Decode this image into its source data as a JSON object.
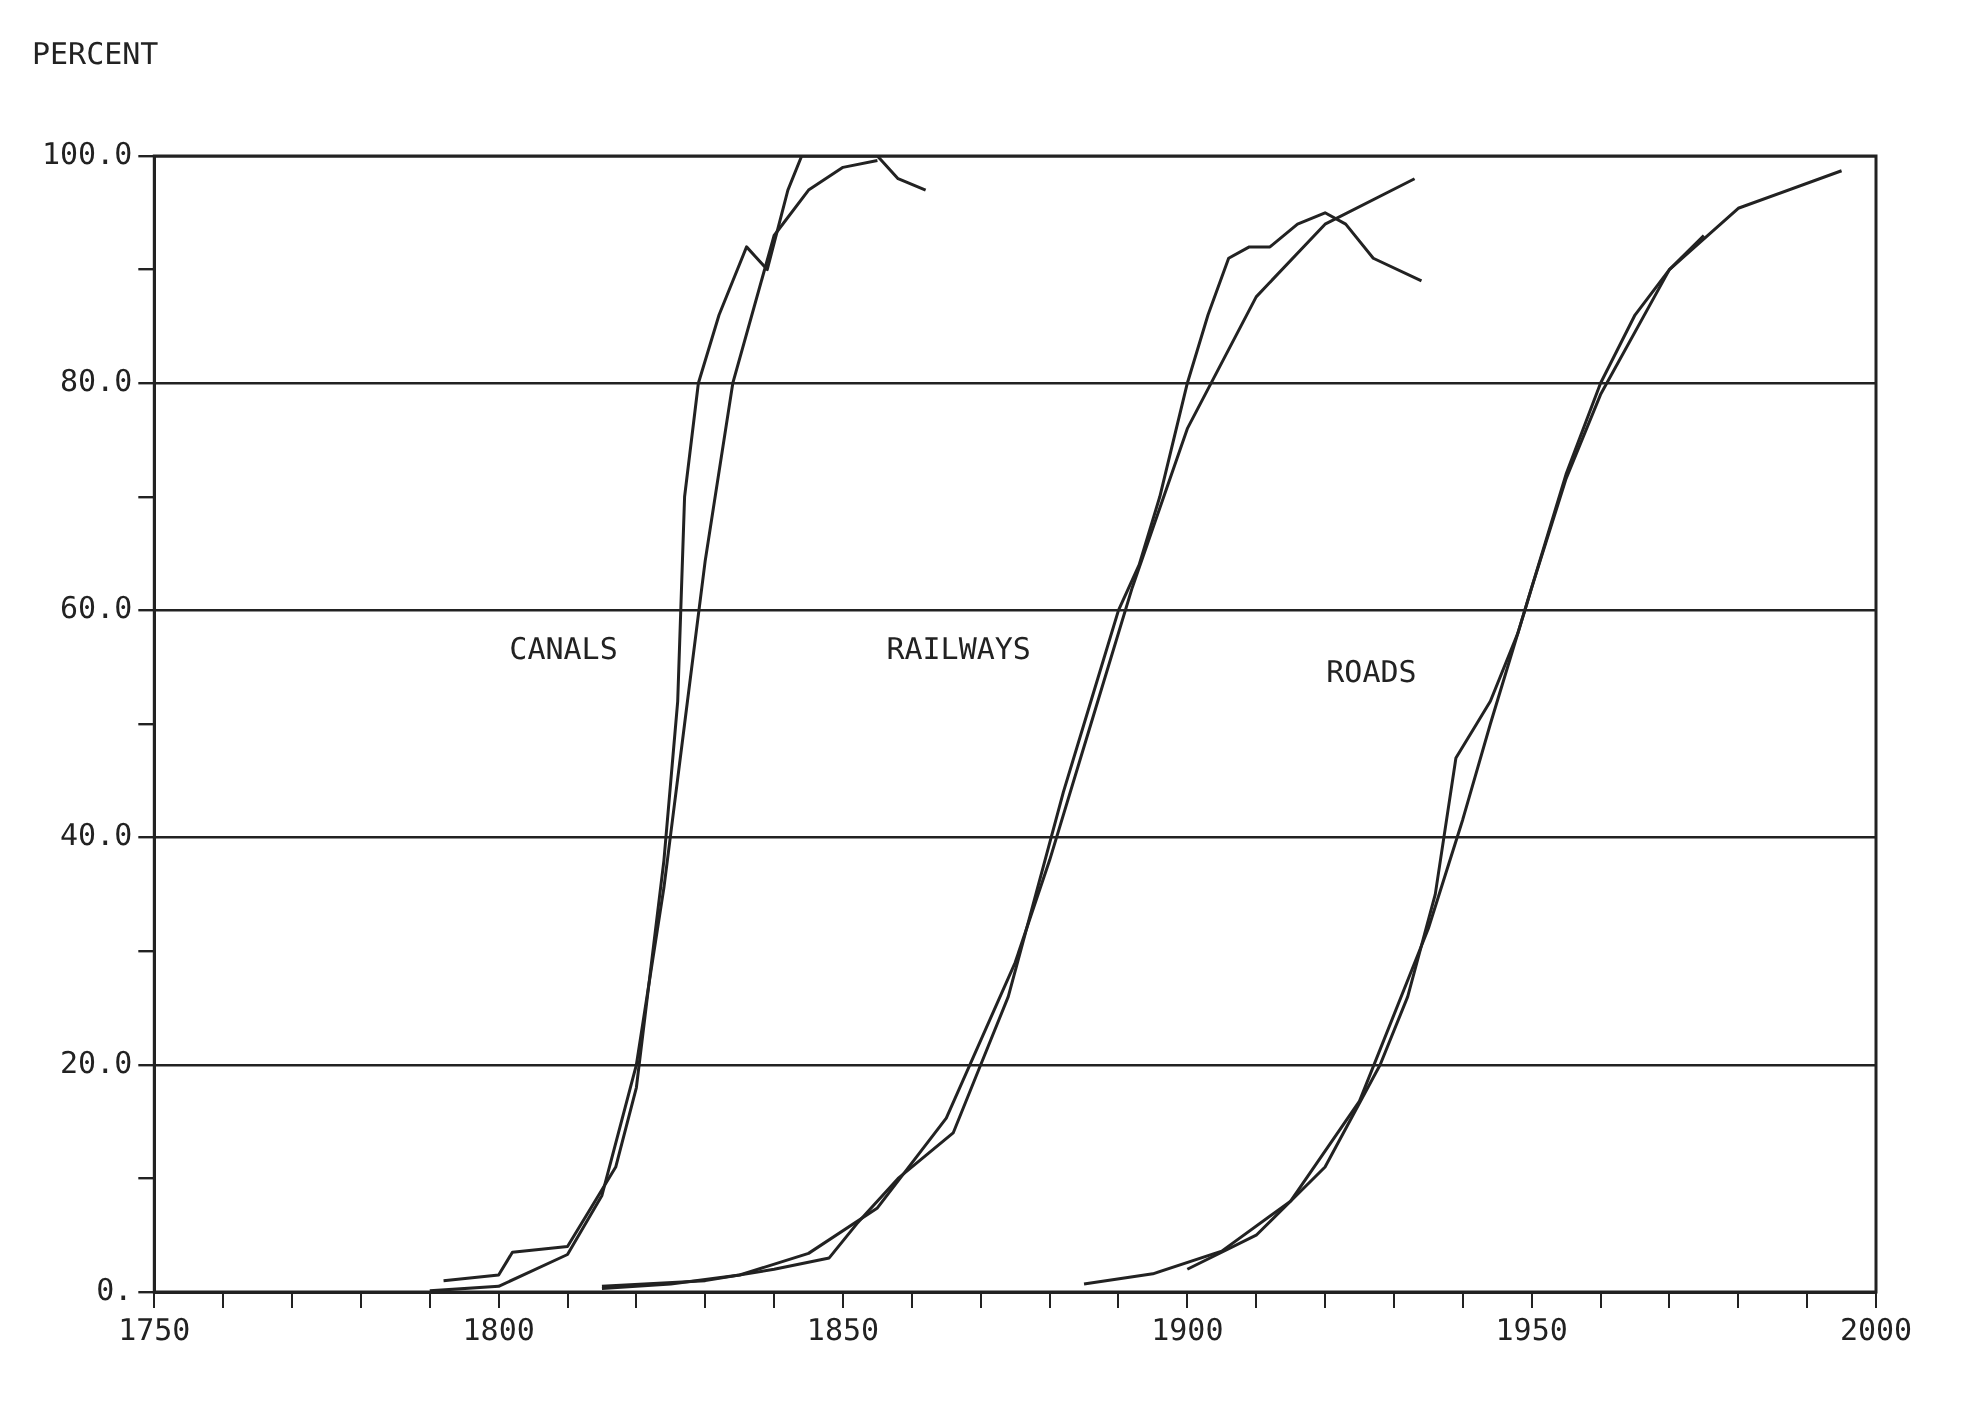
{
  "chart_data": {
    "type": "line",
    "ylabel": "PERCENT",
    "xlim": [
      1750,
      2000
    ],
    "ylim": [
      0,
      100
    ],
    "xticks": [
      1750,
      {
        "value": 1760,
        "label": null
      },
      {
        "value": 1770,
        "label": null
      },
      {
        "value": 1780,
        "label": null
      },
      {
        "value": 1790,
        "label": null
      },
      1800,
      {
        "value": 1810,
        "label": null
      },
      {
        "value": 1820,
        "label": null
      },
      {
        "value": 1830,
        "label": null
      },
      {
        "value": 1840,
        "label": null
      },
      1850,
      {
        "value": 1860,
        "label": null
      },
      {
        "value": 1870,
        "label": null
      },
      {
        "value": 1880,
        "label": null
      },
      {
        "value": 1890,
        "label": null
      },
      1900,
      {
        "value": 1910,
        "label": null
      },
      {
        "value": 1920,
        "label": null
      },
      {
        "value": 1930,
        "label": null
      },
      {
        "value": 1940,
        "label": null
      },
      1950,
      {
        "value": 1960,
        "label": null
      },
      {
        "value": 1970,
        "label": null
      },
      {
        "value": 1980,
        "label": null
      },
      {
        "value": 1990,
        "label": null
      },
      2000
    ],
    "yticks": [
      {
        "value": 0,
        "label": "0."
      },
      {
        "value": 10,
        "label": null
      },
      {
        "value": 20,
        "label": "20.0"
      },
      {
        "value": 30,
        "label": null
      },
      {
        "value": 40,
        "label": "40.0"
      },
      {
        "value": 50,
        "label": null
      },
      {
        "value": 60,
        "label": "60.0"
      },
      {
        "value": 70,
        "label": null
      },
      {
        "value": 80,
        "label": "80.0"
      },
      {
        "value": 90,
        "label": null
      },
      {
        "value": 100,
        "label": "100.0"
      }
    ],
    "grid": "y",
    "legend": false,
    "marker": "none",
    "line_style": "solid",
    "series": [
      {
        "name": "CANALS",
        "color": "#222222",
        "x": [
          1792,
          1800,
          1802,
          1810,
          1813,
          1817,
          1820,
          1822,
          1824,
          1826,
          1827,
          1829,
          1832,
          1836,
          1839,
          1842,
          1844,
          1850,
          1855,
          1858,
          1862
        ],
        "values": [
          1,
          1.5,
          3.5,
          4,
          7,
          11,
          18,
          28,
          38,
          52,
          70,
          80,
          86,
          92,
          90,
          97,
          100,
          100,
          100,
          98,
          97
        ]
      },
      {
        "color": "#222222",
        "x": [
          1790,
          1800,
          1810,
          1815,
          1820,
          1824,
          1827,
          1830,
          1834,
          1840,
          1845,
          1850,
          1855
        ],
        "values": [
          0.1,
          0.5,
          3.3,
          8.5,
          20,
          35.6,
          50,
          64.4,
          80,
          93,
          97,
          99,
          99.6
        ]
      },
      {
        "name": "RAILWAYS",
        "color": "#222222",
        "x": [
          1815,
          1830,
          1840,
          1848,
          1852,
          1858,
          1862,
          1866,
          1870,
          1874,
          1878,
          1882,
          1886,
          1890,
          1893,
          1896,
          1900,
          1903,
          1906,
          1909,
          1912,
          1916,
          1920,
          1923,
          1927,
          1934
        ],
        "values": [
          0.5,
          1,
          2,
          3,
          6,
          10,
          12,
          14,
          20,
          26,
          35,
          44,
          52,
          60,
          64,
          70,
          80,
          86,
          91,
          92,
          92,
          94,
          95,
          94,
          91,
          89
        ]
      },
      {
        "color": "#222222",
        "x": [
          1815,
          1825,
          1835,
          1845,
          1855,
          1865,
          1875,
          1880,
          1886,
          1892,
          1900,
          1910,
          1920,
          1933
        ],
        "values": [
          0.3,
          0.7,
          1.5,
          3.4,
          7.4,
          15.3,
          29,
          38,
          50,
          62,
          76,
          87.6,
          94,
          98
        ]
      },
      {
        "name": "ROADS",
        "color": "#222222",
        "x": [
          1900,
          1910,
          1920,
          1928,
          1932,
          1936,
          1939,
          1942,
          1944,
          1948,
          1955,
          1960,
          1965,
          1970,
          1975
        ],
        "values": [
          2,
          5,
          11,
          20,
          26,
          35,
          47,
          50,
          52,
          58,
          72,
          80,
          86,
          90,
          93
        ]
      },
      {
        "color": "#222222",
        "x": [
          1885,
          1895,
          1905,
          1915,
          1925,
          1935,
          1940,
          1944,
          1950,
          1955,
          1960,
          1970,
          1980,
          1995
        ],
        "values": [
          0.7,
          1.6,
          3.6,
          8,
          16.8,
          32,
          41.6,
          50,
          62,
          71.6,
          79,
          90,
          95.4,
          98.7
        ]
      }
    ]
  }
}
